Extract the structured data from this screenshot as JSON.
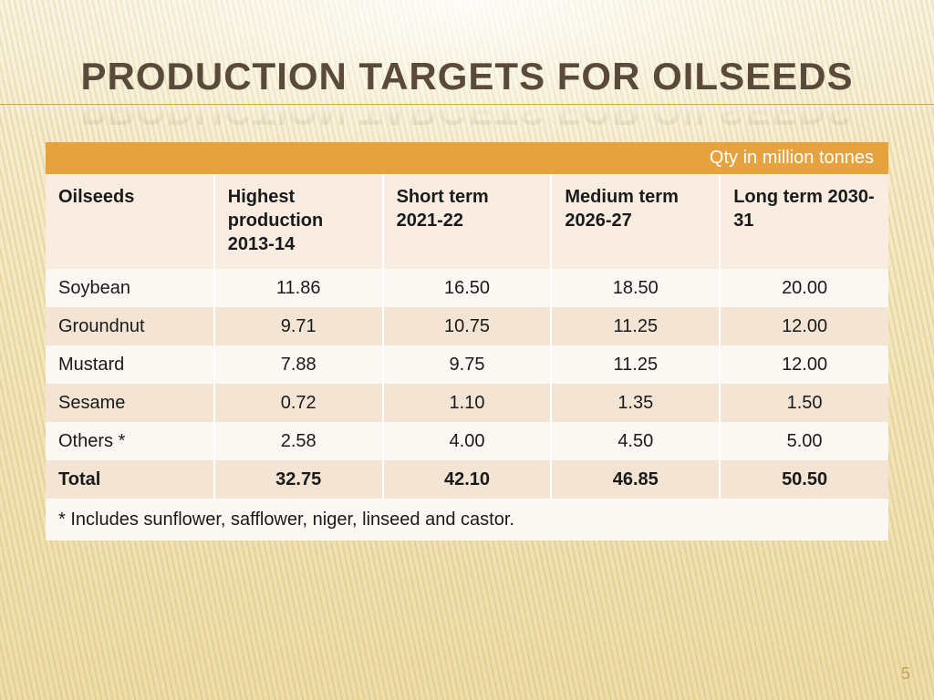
{
  "title": "PRODUCTION TARGETS FOR OILSEEDS",
  "qty_label": "Qty in million tonnes",
  "columns": [
    "Oilseeds",
    "Highest production 2013-14",
    "Short term 2021-22",
    "Medium term 2026-27",
    "Long term 2030-31"
  ],
  "rows": [
    {
      "label": "Soybean",
      "v": [
        "11.86",
        "16.50",
        "18.50",
        "20.00"
      ]
    },
    {
      "label": "Groundnut",
      "v": [
        "9.71",
        "10.75",
        "11.25",
        "12.00"
      ]
    },
    {
      "label": "Mustard",
      "v": [
        "7.88",
        "9.75",
        "11.25",
        "12.00"
      ]
    },
    {
      "label": "Sesame",
      "v": [
        "0.72",
        "1.10",
        "1.35",
        "1.50"
      ]
    },
    {
      "label": "Others *",
      "v": [
        "2.58",
        "4.00",
        "4.50",
        "5.00"
      ]
    }
  ],
  "total": {
    "label": "Total",
    "v": [
      "32.75",
      "42.10",
      "46.85",
      "50.50"
    ]
  },
  "footnote": "* Includes sunflower, safflower, niger, linseed and castor.",
  "page_number": "5",
  "style": {
    "type": "table",
    "title_color": "#5a4a3a",
    "title_fontsize": 42,
    "underline_color": "#d9a54a",
    "qty_bar_bg": "#e6a23c",
    "qty_bar_text": "#ffffff",
    "header_bg": "#f8ede0",
    "row_odd_bg": "#fbf7f2",
    "row_even_bg": "#f4e4d3",
    "cell_border": "#ffffff",
    "text_color": "#1a1a1a",
    "cell_fontsize": 20,
    "page_num_color": "#c9a15a",
    "background_gradient": [
      "#f8f2dc",
      "#f3e7be",
      "#ecdba4"
    ],
    "column_widths_pct": [
      20,
      20,
      20,
      20,
      20
    ],
    "numeric_align": "center"
  }
}
